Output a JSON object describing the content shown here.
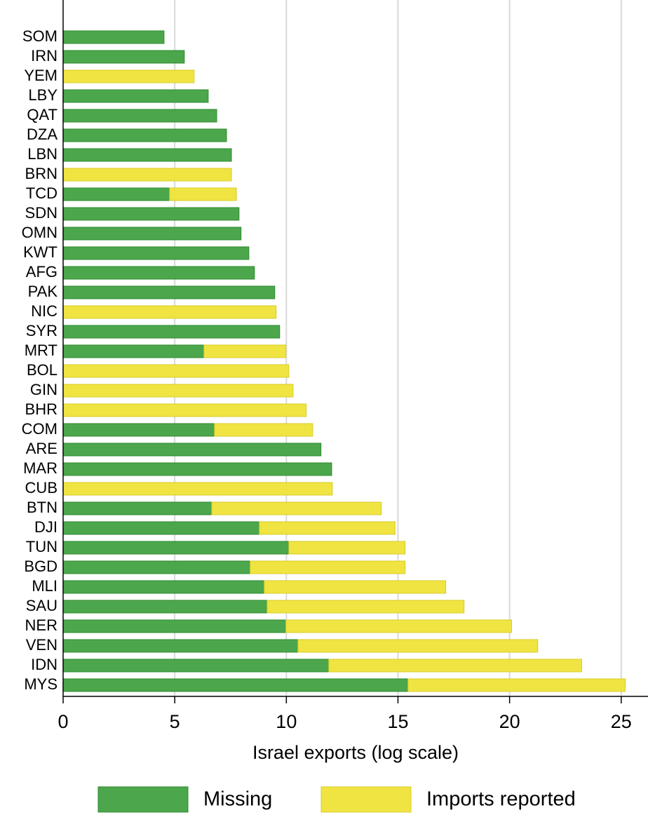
{
  "chart_data": {
    "type": "stacked-barh",
    "x_label": "Israel exports (log scale)",
    "categories": [
      "SOM",
      "IRN",
      "YEM",
      "LBY",
      "QAT",
      "DZA",
      "LBN",
      "BRN",
      "TCD",
      "SDN",
      "OMN",
      "KWT",
      "AFG",
      "PAK",
      "NIC",
      "SYR",
      "MRT",
      "BOL",
      "GIN",
      "BHR",
      "COM",
      "ARE",
      "MAR",
      "CUB",
      "BTN",
      "DJI",
      "TUN",
      "BGD",
      "MLI",
      "SAU",
      "NER",
      "VEN",
      "IDN",
      "MYS"
    ],
    "series": [
      {
        "name": "Missing",
        "color": "#4ca64c",
        "values": [
          4.52,
          5.43,
          0,
          6.5,
          6.88,
          7.32,
          7.54,
          0,
          4.77,
          7.88,
          7.97,
          8.32,
          8.57,
          9.48,
          0,
          9.7,
          6.31,
          0,
          0,
          0,
          6.78,
          11.55,
          12.03,
          0,
          6.66,
          8.79,
          10.11,
          8.38,
          9.01,
          9.14,
          9.98,
          10.52,
          11.9,
          15.45
        ]
      },
      {
        "name": "Imports reported",
        "color": "#efe442",
        "values": [
          0,
          0,
          5.87,
          0,
          0,
          0,
          0,
          7.54,
          2.99,
          0,
          0,
          0,
          0,
          0,
          9.54,
          0,
          3.67,
          10.11,
          10.3,
          10.89,
          4.4,
          0,
          0,
          12.06,
          7.59,
          6.08,
          5.21,
          6.94,
          8.13,
          8.82,
          10.11,
          10.74,
          11.33,
          9.73
        ]
      }
    ],
    "xlim": [
      0,
      26.2
    ],
    "xticks": [
      0,
      5,
      10,
      15,
      20,
      25
    ],
    "grid": true,
    "legend": "bottom"
  }
}
